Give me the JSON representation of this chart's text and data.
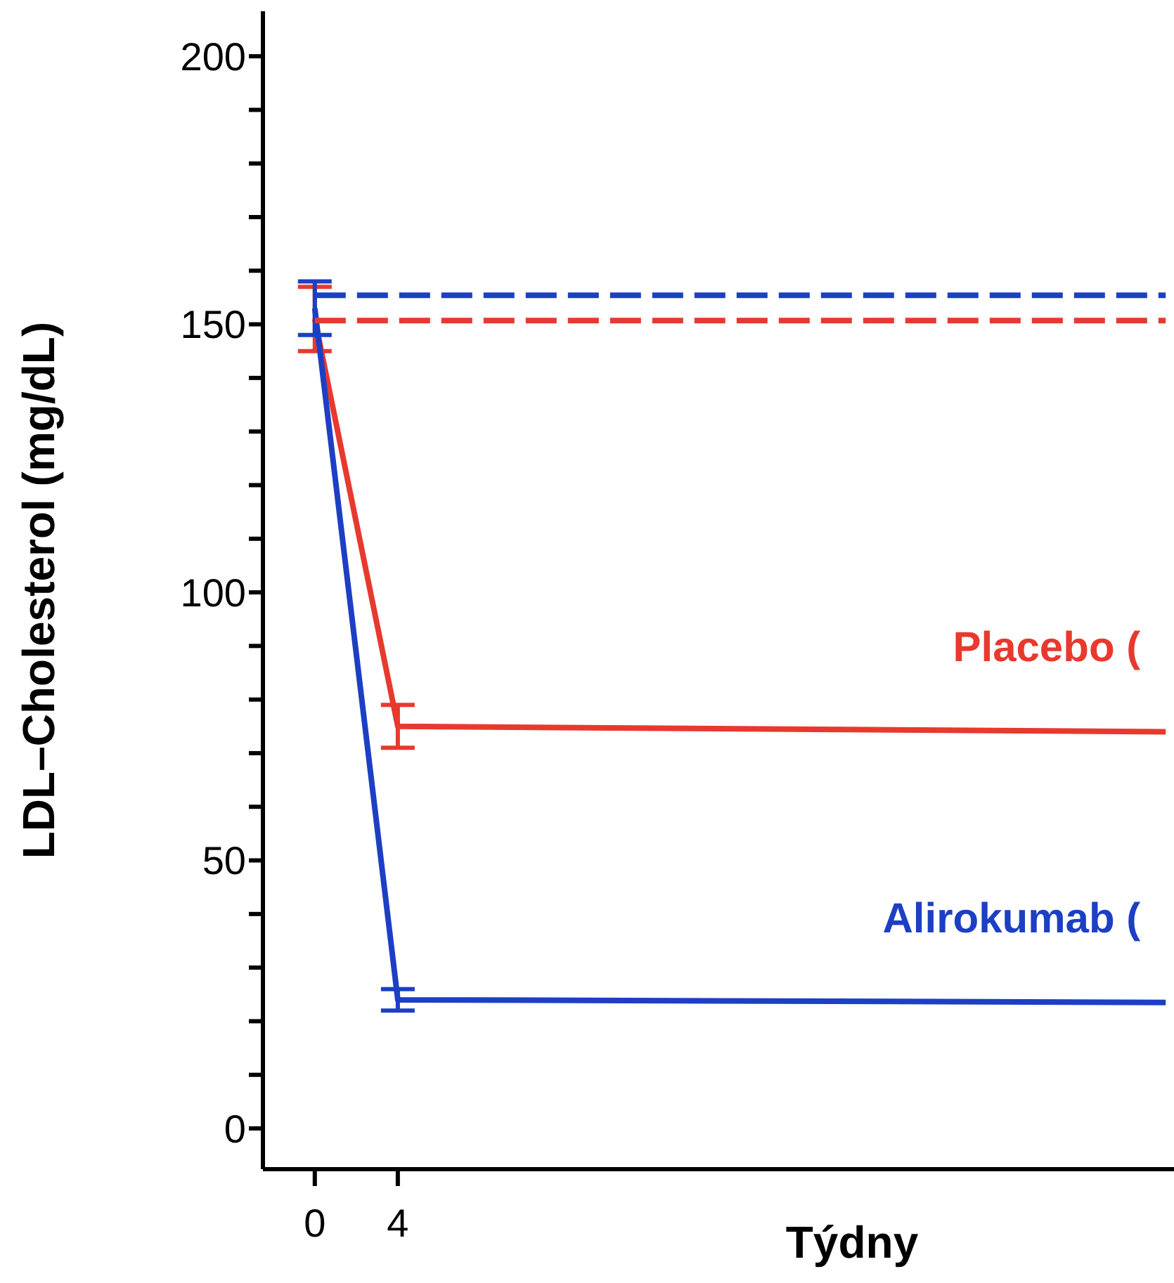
{
  "chart_data": {
    "type": "line",
    "xlabel": "Týdny",
    "ylabel": "LDL–Cholesterol (mg/dL)",
    "xlim": [
      -2.5,
      41.4
    ],
    "ylim": [
      -7.6,
      208.4
    ],
    "xticks": [
      0,
      4
    ],
    "yticks": [
      0,
      {
        "value": 10,
        "label": null
      },
      {
        "value": 20,
        "label": null
      },
      {
        "value": 30,
        "label": null
      },
      {
        "value": 40,
        "label": null
      },
      50,
      {
        "value": 60,
        "label": null
      },
      {
        "value": 70,
        "label": null
      },
      {
        "value": 80,
        "label": null
      },
      {
        "value": 90,
        "label": null
      },
      100,
      {
        "value": 110,
        "label": null
      },
      {
        "value": 120,
        "label": null
      },
      {
        "value": 130,
        "label": null
      },
      {
        "value": 140,
        "label": null
      },
      150,
      {
        "value": 160,
        "label": null
      },
      {
        "value": 170,
        "label": null
      },
      {
        "value": 180,
        "label": null
      },
      {
        "value": 190,
        "label": null
      },
      200
    ],
    "grid": false,
    "legend": false,
    "marker": "none",
    "series": [
      {
        "name": "Placebo (",
        "color": "#e8392e",
        "x": [
          0,
          4,
          41
        ],
        "values": [
          151,
          75,
          74
        ],
        "errors": [
          6,
          4,
          null
        ]
      },
      {
        "name": "Alirokumab (",
        "color": "#1c3fc4",
        "x": [
          0,
          4,
          41
        ],
        "values": [
          153,
          24,
          23.5
        ],
        "errors": [
          5,
          2,
          null
        ]
      },
      {
        "color": "#1c3fc4",
        "x": [
          0,
          41
        ],
        "values": [
          155.4,
          155.4
        ],
        "line_style": "dashed"
      },
      {
        "color": "#e8392e",
        "x": [
          0,
          41
        ],
        "values": [
          150.7,
          150.7
        ],
        "line_style": "dashed"
      }
    ]
  }
}
